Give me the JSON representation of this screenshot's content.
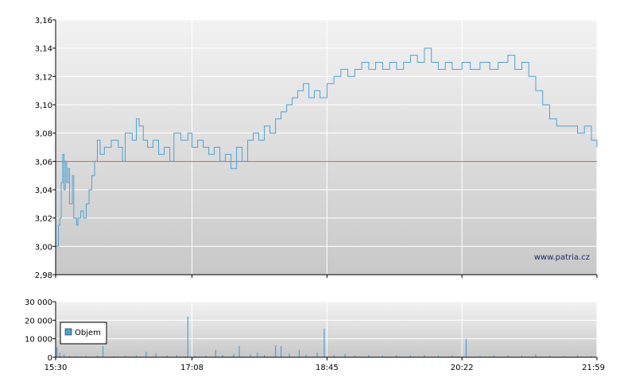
{
  "watermark": "www.patria.cz",
  "colors": {
    "price_line": "#4aa3d6",
    "reference_line": "#e05050",
    "volume_bar": "#4aa3d6",
    "grid": "#ffffff",
    "plot_bg_top": "#f2f2f2",
    "plot_bg_bottom": "#c8c8c8"
  },
  "chart_data": [
    {
      "type": "line",
      "name": "price",
      "x_ticks": [
        "15:30",
        "17:08",
        "18:45",
        "20:22",
        "21:59"
      ],
      "y_ticks": [
        "2,98",
        "3,00",
        "3,02",
        "3,04",
        "3,06",
        "3,08",
        "3,10",
        "3,12",
        "3,14",
        "3,16"
      ],
      "ylim": [
        2.98,
        3.16
      ],
      "xlim": [
        "15:30",
        "21:59"
      ],
      "reference_value": 3.06,
      "grid": true,
      "points": [
        [
          "15:30",
          3.0
        ],
        [
          "15:32",
          3.015
        ],
        [
          "15:33",
          3.02
        ],
        [
          "15:34",
          3.045
        ],
        [
          "15:35",
          3.065
        ],
        [
          "15:36",
          3.04
        ],
        [
          "15:37",
          3.06
        ],
        [
          "15:38",
          3.045
        ],
        [
          "15:39",
          3.055
        ],
        [
          "15:40",
          3.03
        ],
        [
          "15:42",
          3.05
        ],
        [
          "15:43",
          3.02
        ],
        [
          "15:45",
          3.015
        ],
        [
          "15:46",
          3.02
        ],
        [
          "15:48",
          3.025
        ],
        [
          "15:50",
          3.02
        ],
        [
          "15:52",
          3.03
        ],
        [
          "15:54",
          3.04
        ],
        [
          "15:56",
          3.05
        ],
        [
          "15:58",
          3.06
        ],
        [
          "16:00",
          3.075
        ],
        [
          "16:02",
          3.065
        ],
        [
          "16:05",
          3.07
        ],
        [
          "16:10",
          3.075
        ],
        [
          "16:15",
          3.07
        ],
        [
          "16:18",
          3.06
        ],
        [
          "16:20",
          3.08
        ],
        [
          "16:25",
          3.075
        ],
        [
          "16:28",
          3.09
        ],
        [
          "16:30",
          3.085
        ],
        [
          "16:33",
          3.075
        ],
        [
          "16:36",
          3.07
        ],
        [
          "16:40",
          3.075
        ],
        [
          "16:44",
          3.065
        ],
        [
          "16:48",
          3.07
        ],
        [
          "16:52",
          3.06
        ],
        [
          "16:55",
          3.08
        ],
        [
          "17:00",
          3.075
        ],
        [
          "17:05",
          3.08
        ],
        [
          "17:08",
          3.07
        ],
        [
          "17:12",
          3.075
        ],
        [
          "17:16",
          3.07
        ],
        [
          "17:20",
          3.065
        ],
        [
          "17:24",
          3.07
        ],
        [
          "17:28",
          3.06
        ],
        [
          "17:32",
          3.065
        ],
        [
          "17:36",
          3.055
        ],
        [
          "17:40",
          3.07
        ],
        [
          "17:44",
          3.06
        ],
        [
          "17:48",
          3.075
        ],
        [
          "17:52",
          3.08
        ],
        [
          "17:56",
          3.075
        ],
        [
          "18:00",
          3.085
        ],
        [
          "18:04",
          3.08
        ],
        [
          "18:08",
          3.09
        ],
        [
          "18:12",
          3.095
        ],
        [
          "18:16",
          3.1
        ],
        [
          "18:20",
          3.105
        ],
        [
          "18:24",
          3.11
        ],
        [
          "18:28",
          3.115
        ],
        [
          "18:32",
          3.105
        ],
        [
          "18:36",
          3.11
        ],
        [
          "18:40",
          3.105
        ],
        [
          "18:45",
          3.115
        ],
        [
          "18:50",
          3.12
        ],
        [
          "18:55",
          3.125
        ],
        [
          "19:00",
          3.12
        ],
        [
          "19:05",
          3.125
        ],
        [
          "19:10",
          3.13
        ],
        [
          "19:15",
          3.125
        ],
        [
          "19:20",
          3.13
        ],
        [
          "19:25",
          3.125
        ],
        [
          "19:30",
          3.13
        ],
        [
          "19:35",
          3.125
        ],
        [
          "19:40",
          3.13
        ],
        [
          "19:45",
          3.135
        ],
        [
          "19:50",
          3.13
        ],
        [
          "19:55",
          3.14
        ],
        [
          "20:00",
          3.13
        ],
        [
          "20:05",
          3.125
        ],
        [
          "20:10",
          3.13
        ],
        [
          "20:15",
          3.125
        ],
        [
          "20:22",
          3.13
        ],
        [
          "20:28",
          3.125
        ],
        [
          "20:35",
          3.13
        ],
        [
          "20:42",
          3.125
        ],
        [
          "20:48",
          3.13
        ],
        [
          "20:55",
          3.135
        ],
        [
          "21:00",
          3.125
        ],
        [
          "21:05",
          3.13
        ],
        [
          "21:10",
          3.12
        ],
        [
          "21:15",
          3.11
        ],
        [
          "21:20",
          3.1
        ],
        [
          "21:25",
          3.09
        ],
        [
          "21:30",
          3.085
        ],
        [
          "21:35",
          3.085
        ],
        [
          "21:40",
          3.085
        ],
        [
          "21:45",
          3.08
        ],
        [
          "21:50",
          3.085
        ],
        [
          "21:55",
          3.075
        ],
        [
          "21:59",
          3.07
        ]
      ]
    },
    {
      "type": "bar",
      "name": "volume",
      "legend": "Objem",
      "legend_position": "left",
      "x_ticks": [
        "15:30",
        "17:08",
        "18:45",
        "20:22",
        "21:59"
      ],
      "y_ticks": [
        "0",
        "10 000",
        "20 000",
        "30 000"
      ],
      "ylim": [
        0,
        30000
      ],
      "grid": true,
      "bars": [
        [
          "15:31",
          5500
        ],
        [
          "15:33",
          2500
        ],
        [
          "15:36",
          1500
        ],
        [
          "15:40",
          800
        ],
        [
          "15:45",
          600
        ],
        [
          "15:52",
          700
        ],
        [
          "16:00",
          900
        ],
        [
          "16:04",
          6000
        ],
        [
          "16:12",
          500
        ],
        [
          "16:20",
          800
        ],
        [
          "16:28",
          900
        ],
        [
          "16:35",
          3000
        ],
        [
          "16:42",
          2000
        ],
        [
          "16:50",
          900
        ],
        [
          "16:57",
          1200
        ],
        [
          "17:05",
          22000
        ],
        [
          "17:10",
          600
        ],
        [
          "17:18",
          800
        ],
        [
          "17:25",
          4000
        ],
        [
          "17:30",
          1200
        ],
        [
          "17:38",
          1800
        ],
        [
          "17:42",
          6000
        ],
        [
          "17:50",
          1500
        ],
        [
          "17:55",
          2500
        ],
        [
          "18:00",
          1200
        ],
        [
          "18:08",
          6500
        ],
        [
          "18:12",
          6000
        ],
        [
          "18:18",
          2000
        ],
        [
          "18:25",
          4000
        ],
        [
          "18:30",
          1500
        ],
        [
          "18:38",
          2500
        ],
        [
          "18:43",
          15500
        ],
        [
          "18:50",
          1200
        ],
        [
          "18:58",
          1800
        ],
        [
          "19:05",
          900
        ],
        [
          "19:15",
          1200
        ],
        [
          "19:25",
          800
        ],
        [
          "19:35",
          900
        ],
        [
          "19:45",
          1000
        ],
        [
          "19:55",
          1200
        ],
        [
          "20:05",
          800
        ],
        [
          "20:15",
          900
        ],
        [
          "20:25",
          10000
        ],
        [
          "20:35",
          700
        ],
        [
          "20:45",
          900
        ],
        [
          "20:55",
          1000
        ],
        [
          "21:05",
          800
        ],
        [
          "21:15",
          1500
        ],
        [
          "21:25",
          800
        ],
        [
          "21:35",
          700
        ],
        [
          "21:45",
          900
        ],
        [
          "21:55",
          600
        ]
      ]
    }
  ]
}
